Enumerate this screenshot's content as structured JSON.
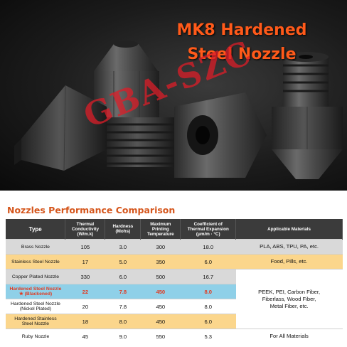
{
  "headline": {
    "line1": "MK8 Hardened",
    "line2": "Steel Nozzle"
  },
  "watermark": "GBA-SZC",
  "table": {
    "title": "Nozzles Performance Comparison",
    "headers": {
      "type": "Type",
      "conductivity": [
        "Thermal Conductivity",
        "(W/m.k)"
      ],
      "hardness": [
        "Hardness",
        "(Mohs)"
      ],
      "temperature": [
        "Maximum",
        "Printing",
        "Temperature"
      ],
      "expansion": [
        "Coefficient of",
        "Thermal Expansion",
        "(μm/m · °C)"
      ],
      "materials": "Applicable Materials"
    },
    "rows": [
      {
        "name": [
          "Brass Nozzle"
        ],
        "conductivity": "105",
        "hardness": "3.0",
        "temperature": "300",
        "expansion": "18.0",
        "materials": "PLA, ABS, TPU, PA, etc."
      },
      {
        "name": [
          "Stainless Steel Nozzle"
        ],
        "conductivity": "17",
        "hardness": "5.0",
        "temperature": "350",
        "expansion": "6.0",
        "materials": "Food, Pills, etc."
      },
      {
        "name": [
          "Copper Plated Nozzle"
        ],
        "conductivity": "330",
        "hardness": "6.0",
        "temperature": "500",
        "expansion": "16.7"
      },
      {
        "name": [
          "Hardened Steel Nozzle",
          "(Blackened)"
        ],
        "star": "★",
        "conductivity": "22",
        "hardness": "7.8",
        "temperature": "450",
        "expansion": "8.0"
      },
      {
        "name": [
          "Hardened Steel Nozzle",
          "(Nickel Plated)"
        ],
        "conductivity": "20",
        "hardness": "7.8",
        "temperature": "450",
        "expansion": "8.0"
      },
      {
        "name": [
          "Hardened Stainless",
          "Steel Nozzle"
        ],
        "conductivity": "18",
        "hardness": "8.0",
        "temperature": "450",
        "expansion": "6.0"
      },
      {
        "name": [
          "Ruby Nozzle"
        ],
        "conductivity": "45",
        "hardness": "9.0",
        "temperature": "550",
        "expansion": "5.3",
        "materials": "For All Materials"
      }
    ],
    "shared_materials": [
      "PEEK, PEI, Carbon Fiber,",
      "Fiberlass, Wood Fiber,",
      "Metal Fiber, etc."
    ]
  }
}
